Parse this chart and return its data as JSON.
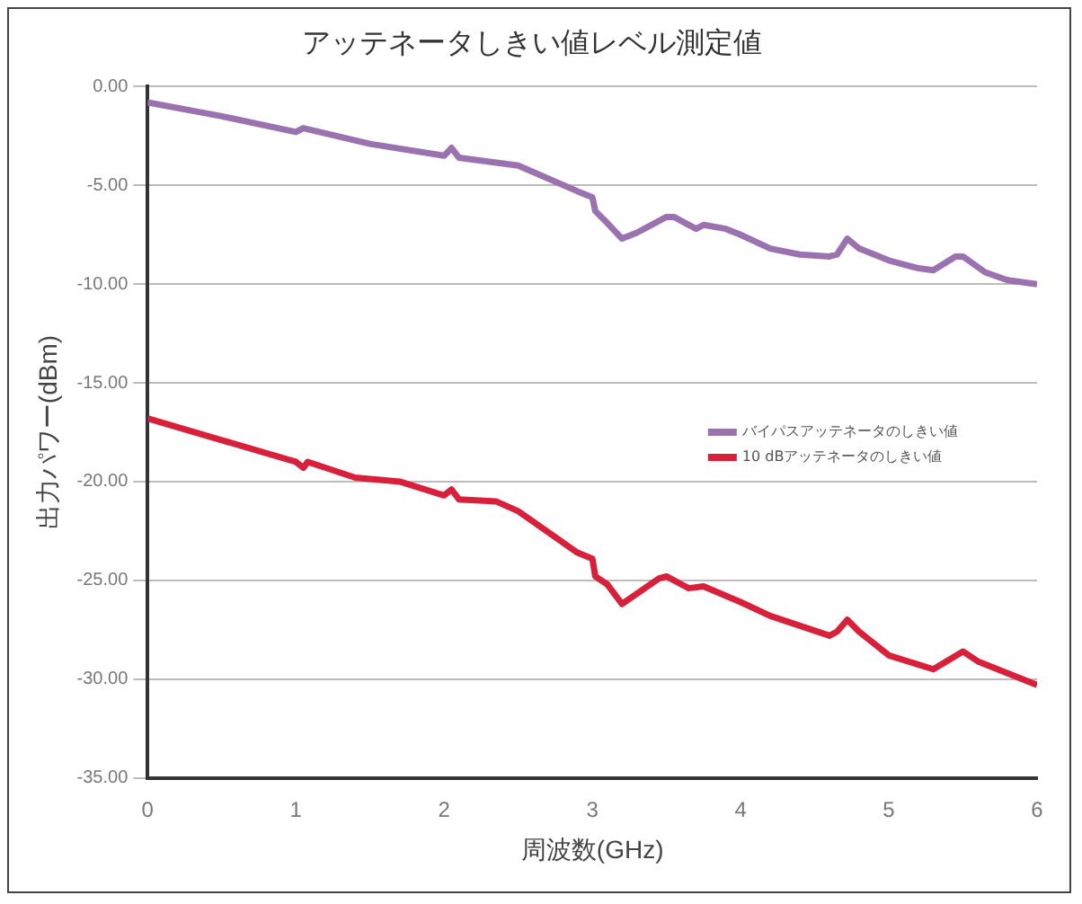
{
  "chart_data": {
    "type": "line",
    "title": "アッテネータしきい値レベル測定値",
    "xlabel": "周波数(GHz)",
    "ylabel": "出力パワー(dBm)",
    "xlim": [
      0,
      6
    ],
    "xticks": [
      0,
      1,
      2,
      3,
      4,
      5,
      6
    ],
    "ylim": [
      -35,
      0
    ],
    "yticks": [
      {
        "value": 0,
        "label": "0.00"
      },
      {
        "value": -5,
        "label": "-5.00"
      },
      {
        "value": -10,
        "label": "-10.00"
      },
      {
        "value": -15,
        "label": "-15.00"
      },
      {
        "value": -20,
        "label": "-20.00"
      },
      {
        "value": -25,
        "label": "-25.00"
      },
      {
        "value": -30,
        "label": "-30.00"
      },
      {
        "value": -35,
        "label": "-35.00"
      }
    ],
    "grid": "y",
    "legend": "right",
    "marker": "none",
    "line_style": "solid",
    "series": [
      {
        "name": "バイパスアッテネータのしきい値",
        "color": "#9b72b0",
        "x": [
          0,
          0.5,
          1,
          1.05,
          1.5,
          2,
          2.05,
          2.1,
          2.5,
          2.9,
          3,
          3.02,
          3.1,
          3.2,
          3.3,
          3.5,
          3.55,
          3.7,
          3.75,
          3.9,
          4,
          4.2,
          4.4,
          4.6,
          4.65,
          4.72,
          4.8,
          5,
          5.2,
          5.3,
          5.45,
          5.5,
          5.65,
          5.8,
          6
        ],
        "values": [
          -0.8,
          -1.5,
          -2.3,
          -2.1,
          -2.9,
          -3.5,
          -3.1,
          -3.6,
          -4.0,
          -5.3,
          -5.6,
          -6.3,
          -6.9,
          -7.7,
          -7.4,
          -6.6,
          -6.6,
          -7.2,
          -7.0,
          -7.2,
          -7.5,
          -8.2,
          -8.5,
          -8.6,
          -8.5,
          -7.7,
          -8.2,
          -8.8,
          -9.2,
          -9.3,
          -8.6,
          -8.6,
          -9.4,
          -9.8,
          -10.0
        ]
      },
      {
        "name": "10 dBアッテネータのしきい値",
        "color": "#d8203a",
        "x": [
          0,
          0.5,
          1,
          1.05,
          1.08,
          1.4,
          1.7,
          2,
          2.05,
          2.1,
          2.35,
          2.5,
          2.9,
          3,
          3.02,
          3.1,
          3.2,
          3.45,
          3.5,
          3.65,
          3.75,
          4,
          4.2,
          4.6,
          4.65,
          4.72,
          4.8,
          5,
          5.3,
          5.5,
          5.6,
          6
        ],
        "values": [
          -16.8,
          -17.9,
          -19.0,
          -19.3,
          -19.0,
          -19.8,
          -20.0,
          -20.7,
          -20.4,
          -20.9,
          -21.0,
          -21.5,
          -23.6,
          -23.9,
          -24.8,
          -25.2,
          -26.2,
          -24.9,
          -24.8,
          -25.4,
          -25.3,
          -26.1,
          -26.8,
          -27.8,
          -27.6,
          -27.0,
          -27.6,
          -28.8,
          -29.5,
          -28.6,
          -29.1,
          -30.3
        ]
      }
    ]
  }
}
